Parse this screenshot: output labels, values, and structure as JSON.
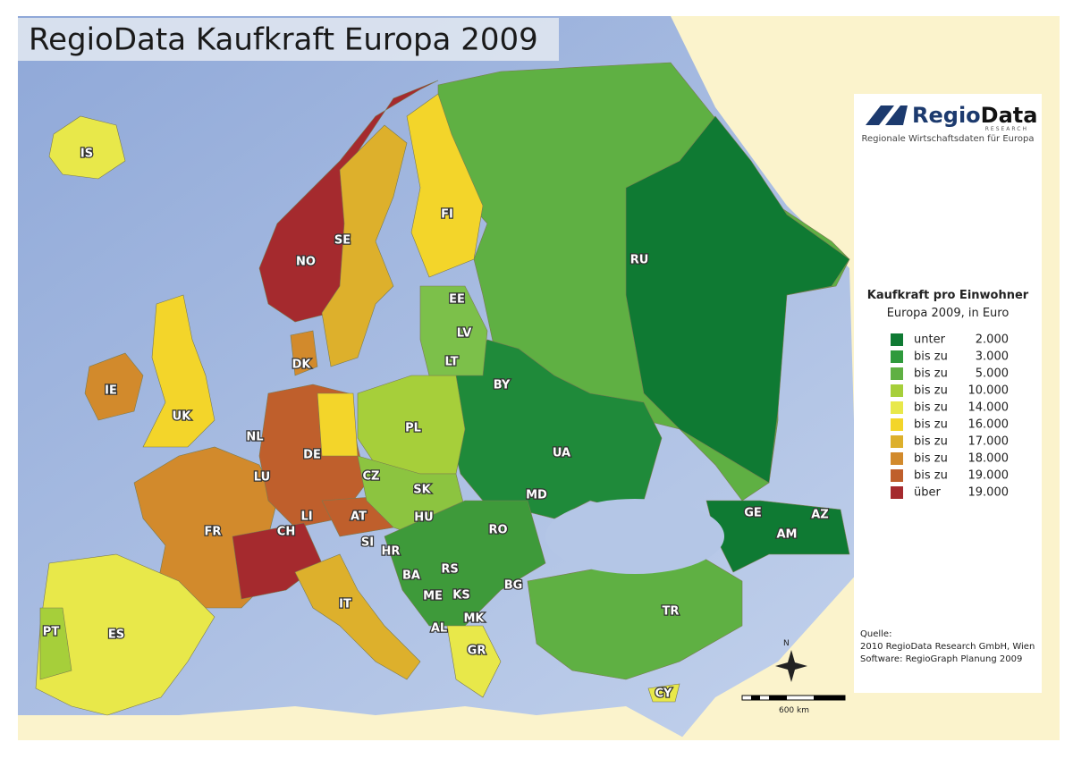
{
  "title": "RegioData Kaufkraft Europa 2009",
  "logo": {
    "name_part1": "Regio",
    "name_part2": "Data",
    "tagline": "RESEARCH",
    "subtitle": "Regionale Wirtschaftsdaten für Europa"
  },
  "legend": {
    "title": "Kaufkraft pro Einwohner",
    "subtitle": "Europa 2009, in Euro",
    "entries": [
      {
        "label": "unter",
        "value": "2.000",
        "color": "#0f7a33"
      },
      {
        "label": "bis zu",
        "value": "3.000",
        "color": "#2f9a3c"
      },
      {
        "label": "bis zu",
        "value": "5.000",
        "color": "#5fb043"
      },
      {
        "label": "bis zu",
        "value": "10.000",
        "color": "#a6cf3a"
      },
      {
        "label": "bis zu",
        "value": "14.000",
        "color": "#e8e84a"
      },
      {
        "label": "bis zu",
        "value": "16.000",
        "color": "#f3d52a"
      },
      {
        "label": "bis zu",
        "value": "17.000",
        "color": "#ddb02c"
      },
      {
        "label": "bis zu",
        "value": "18.000",
        "color": "#d28a2c"
      },
      {
        "label": "bis zu",
        "value": "19.000",
        "color": "#bf5f2c"
      },
      {
        "label": "über",
        "value": "19.000",
        "color": "#a52a2e"
      }
    ]
  },
  "source": {
    "heading": "Quelle:",
    "lines": [
      "2010 RegioData Research GmbH, Wien",
      "Software: RegioGraph Planung 2009"
    ]
  },
  "scale": "600 km",
  "compass": "N",
  "countries": [
    "IS",
    "FI",
    "NO",
    "SE",
    "RU",
    "EE",
    "LV",
    "LT",
    "DK",
    "IE",
    "UK",
    "BY",
    "PL",
    "NL",
    "DE",
    "LU",
    "UA",
    "CZ",
    "SK",
    "MD",
    "FR",
    "CH",
    "LI",
    "AT",
    "HU",
    "RO",
    "GE",
    "AZ",
    "AM",
    "SI",
    "HR",
    "BA",
    "RS",
    "ES",
    "PT",
    "IT",
    "ME",
    "KS",
    "BG",
    "MK",
    "AL",
    "TR",
    "GR",
    "CY"
  ]
}
